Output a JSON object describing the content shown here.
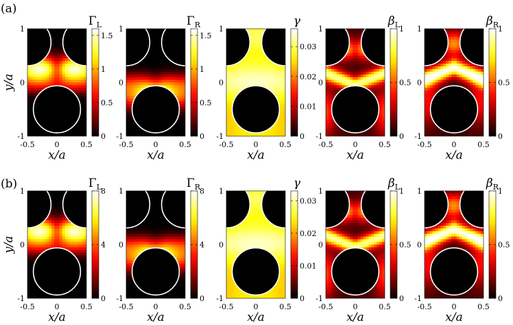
{
  "figure": {
    "rows": [
      {
        "label": "(a)",
        "panels": [
          {
            "cb_label": "Γ",
            "cb_sub": "L",
            "cb_italic": false,
            "ticks": [
              "0",
              "0.5",
              "1",
              "1.5"
            ],
            "cmax": 1.6,
            "pattern": "GL"
          },
          {
            "cb_label": "Γ",
            "cb_sub": "R",
            "cb_italic": false,
            "ticks": [
              "0",
              "0.5",
              "1",
              "1.5"
            ],
            "cmax": 1.6,
            "pattern": "GR"
          },
          {
            "cb_label": "γ",
            "cb_sub": "",
            "cb_italic": true,
            "ticks": [
              "0",
              "0.01",
              "0.02",
              "0.03"
            ],
            "cmax": 0.036,
            "pattern": "g"
          },
          {
            "cb_label": "β",
            "cb_sub": "L",
            "cb_italic": true,
            "ticks": [
              "0",
              "0.5",
              "1"
            ],
            "cmax": 1.0,
            "pattern": "bL"
          },
          {
            "cb_label": "β",
            "cb_sub": "R",
            "cb_italic": true,
            "ticks": [
              "0",
              "0.5",
              "1"
            ],
            "cmax": 1.0,
            "pattern": "bR"
          }
        ]
      },
      {
        "label": "(b)",
        "panels": [
          {
            "cb_label": "Γ",
            "cb_sub": "L",
            "cb_italic": false,
            "ticks": [
              "0",
              "4",
              "8"
            ],
            "cmax": 8,
            "pattern": "GL"
          },
          {
            "cb_label": "Γ",
            "cb_sub": "R",
            "cb_italic": false,
            "ticks": [
              "0",
              "4",
              "8"
            ],
            "cmax": 8,
            "pattern": "GR"
          },
          {
            "cb_label": "γ",
            "cb_sub": "",
            "cb_italic": true,
            "ticks": [
              "0",
              "0.01",
              "0.02",
              "0.03"
            ],
            "cmax": 0.033,
            "pattern": "g"
          },
          {
            "cb_label": "β",
            "cb_sub": "L",
            "cb_italic": true,
            "ticks": [
              "0",
              "0.5",
              "1"
            ],
            "cmax": 1.0,
            "pattern": "bL"
          },
          {
            "cb_label": "β",
            "cb_sub": "R",
            "cb_italic": true,
            "ticks": [
              "0",
              "0.5",
              "1"
            ],
            "cmax": 1.0,
            "pattern": "bR"
          }
        ]
      }
    ],
    "x_ticks": [
      "-0.5",
      "0",
      "0.5"
    ],
    "y_ticks": [
      "1",
      "0",
      "-1"
    ],
    "xlabel": "x/a",
    "ylabel": "y/a"
  },
  "chart_data": [
    {
      "type": "heatmap",
      "panel": "(a) Γ_L",
      "xlabel": "x/a",
      "ylabel": "y/a",
      "xlim": [
        -0.5,
        0.5
      ],
      "ylim": [
        -1,
        1
      ],
      "colorbar_label": "Γ_L",
      "clim": [
        0,
        1.6
      ],
      "colorbar_ticks": [
        0,
        0.5,
        1,
        1.5
      ],
      "colormap": "black-red-yellow-white"
    },
    {
      "type": "heatmap",
      "panel": "(a) Γ_R",
      "xlabel": "x/a",
      "ylabel": "y/a",
      "xlim": [
        -0.5,
        0.5
      ],
      "ylim": [
        -1,
        1
      ],
      "colorbar_label": "Γ_R",
      "clim": [
        0,
        1.6
      ],
      "colorbar_ticks": [
        0,
        0.5,
        1,
        1.5
      ],
      "colormap": "black-red-yellow-white"
    },
    {
      "type": "heatmap",
      "panel": "(a) γ",
      "xlabel": "x/a",
      "ylabel": "y/a",
      "xlim": [
        -0.5,
        0.5
      ],
      "ylim": [
        -1,
        1
      ],
      "colorbar_label": "γ",
      "clim": [
        0,
        0.036
      ],
      "colorbar_ticks": [
        0,
        0.01,
        0.02,
        0.03
      ],
      "colormap": "black-red-yellow-white"
    },
    {
      "type": "heatmap",
      "panel": "(a) β_L",
      "xlabel": "x/a",
      "ylabel": "y/a",
      "xlim": [
        -0.5,
        0.5
      ],
      "ylim": [
        -1,
        1
      ],
      "colorbar_label": "β_L",
      "clim": [
        0,
        1
      ],
      "colorbar_ticks": [
        0,
        0.5,
        1
      ],
      "colormap": "black-red-yellow-white"
    },
    {
      "type": "heatmap",
      "panel": "(a) β_R",
      "xlabel": "x/a",
      "ylabel": "y/a",
      "xlim": [
        -0.5,
        0.5
      ],
      "ylim": [
        -1,
        1
      ],
      "colorbar_label": "β_R",
      "clim": [
        0,
        1
      ],
      "colorbar_ticks": [
        0,
        0.5,
        1
      ],
      "colormap": "black-red-yellow-white"
    },
    {
      "type": "heatmap",
      "panel": "(b) Γ_L",
      "xlabel": "x/a",
      "ylabel": "y/a",
      "xlim": [
        -0.5,
        0.5
      ],
      "ylim": [
        -1,
        1
      ],
      "colorbar_label": "Γ_L",
      "clim": [
        0,
        8
      ],
      "colorbar_ticks": [
        0,
        4,
        8
      ],
      "colormap": "black-red-yellow-white"
    },
    {
      "type": "heatmap",
      "panel": "(b) Γ_R",
      "xlabel": "x/a",
      "ylabel": "y/a",
      "xlim": [
        -0.5,
        0.5
      ],
      "ylim": [
        -1,
        1
      ],
      "colorbar_label": "Γ_R",
      "clim": [
        0,
        8
      ],
      "colorbar_ticks": [
        0,
        4,
        8
      ],
      "colormap": "black-red-yellow-white"
    },
    {
      "type": "heatmap",
      "panel": "(b) γ",
      "xlabel": "x/a",
      "ylabel": "y/a",
      "xlim": [
        -0.5,
        0.5
      ],
      "ylim": [
        -1,
        1
      ],
      "colorbar_label": "γ",
      "clim": [
        0,
        0.033
      ],
      "colorbar_ticks": [
        0,
        0.01,
        0.02,
        0.03
      ],
      "colormap": "black-red-yellow-white"
    },
    {
      "type": "heatmap",
      "panel": "(b) β_L",
      "xlabel": "x/a",
      "ylabel": "y/a",
      "xlim": [
        -0.5,
        0.5
      ],
      "ylim": [
        -1,
        1
      ],
      "colorbar_label": "β_L",
      "clim": [
        0,
        1
      ],
      "colorbar_ticks": [
        0,
        0.5,
        1
      ],
      "colormap": "black-red-yellow-white"
    },
    {
      "type": "heatmap",
      "panel": "(b) β_R",
      "xlabel": "x/a",
      "ylabel": "y/a",
      "xlim": [
        -0.5,
        0.5
      ],
      "ylim": [
        -1,
        1
      ],
      "colorbar_label": "β_R",
      "clim": [
        0,
        1
      ],
      "colorbar_ticks": [
        0,
        0.5,
        1
      ],
      "colormap": "black-red-yellow-white"
    }
  ]
}
